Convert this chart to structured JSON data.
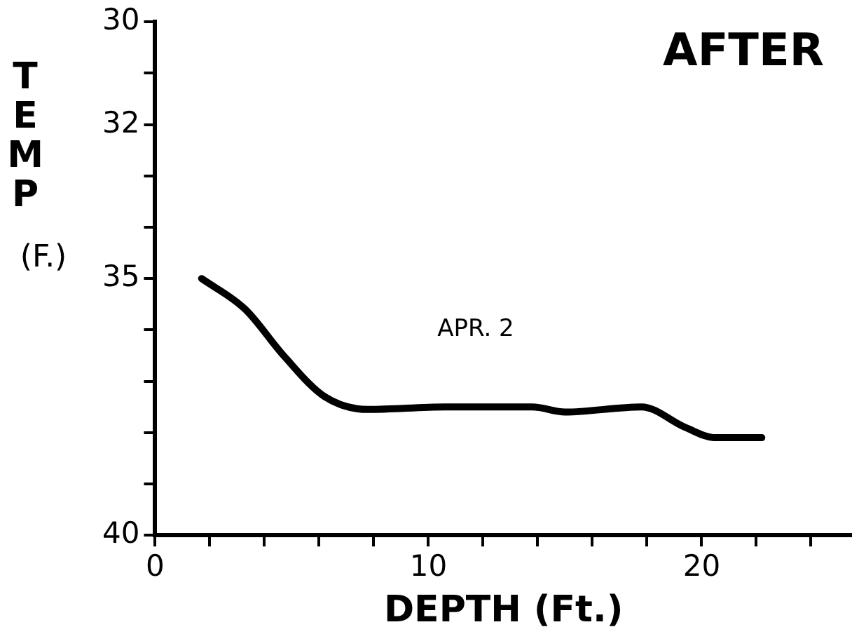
{
  "chart_data": {
    "type": "line",
    "title": "AFTER",
    "xlabel": "DEPTH (Ft.)",
    "ylabel": "TEMP (F.)",
    "annotations": [
      "APR. 2"
    ],
    "x": [
      1.7,
      3.3,
      4.7,
      6.2,
      7.8,
      10.6,
      13.8,
      15.0,
      17.8,
      19.4,
      20.5,
      22.2
    ],
    "series": [
      {
        "color": "#000000",
        "values": [
          35.0,
          35.6,
          36.5,
          37.3,
          37.55,
          37.5,
          37.5,
          37.6,
          37.5,
          37.9,
          38.1,
          38.1
        ]
      }
    ],
    "xlim": [
      0,
      25.5
    ],
    "xticks": [
      0,
      {
        "value": 2,
        "label": null
      },
      {
        "value": 4,
        "label": null
      },
      {
        "value": 6,
        "label": null
      },
      {
        "value": 8,
        "label": null
      },
      10,
      {
        "value": 12,
        "label": null
      },
      {
        "value": 14,
        "label": null
      },
      {
        "value": 16,
        "label": null
      },
      {
        "value": 18,
        "label": null
      },
      20,
      {
        "value": 22,
        "label": null
      },
      {
        "value": 24,
        "label": null
      }
    ],
    "ylim": [
      40,
      30
    ],
    "yticks": [
      30,
      {
        "value": 31,
        "label": null
      },
      32,
      {
        "value": 33,
        "label": null
      },
      {
        "value": 34,
        "label": null
      },
      35,
      {
        "value": 36,
        "label": null
      },
      {
        "value": 37,
        "label": null
      },
      {
        "value": 38,
        "label": null
      },
      {
        "value": 39,
        "label": null
      },
      40
    ],
    "grid": false,
    "legend": false,
    "marker": "none",
    "line_style": "solid"
  }
}
